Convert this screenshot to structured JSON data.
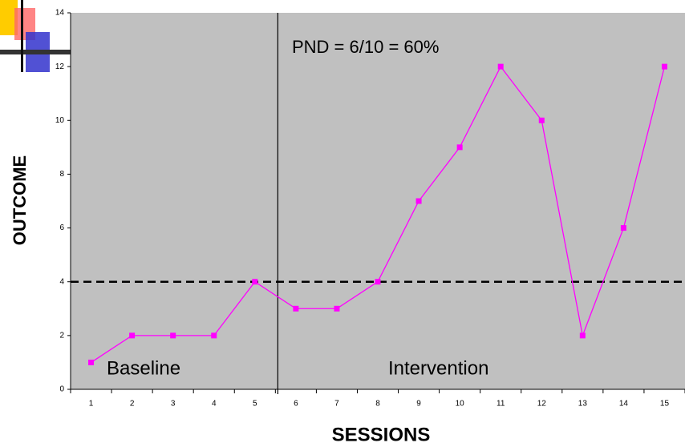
{
  "chart_data": {
    "type": "line",
    "annotations": [
      "PND = 6/10 = 60%",
      "Baseline",
      "Intervention"
    ],
    "x_label": "SESSIONS",
    "y_label": "OUTCOME",
    "categories": [
      "1",
      "2",
      "3",
      "4",
      "5",
      "6",
      "7",
      "8",
      "9",
      "10",
      "11",
      "12",
      "13",
      "14",
      "15"
    ],
    "series": [
      {
        "color": "#ff00ff",
        "values": [
          1,
          2,
          2,
          2,
          4,
          3,
          3,
          4,
          7,
          9,
          12,
          10,
          2,
          6,
          12
        ]
      }
    ],
    "reference_line": 4,
    "ylim": [
      0,
      14
    ],
    "yticks": [
      0,
      2,
      4,
      6,
      8,
      10,
      12,
      14
    ],
    "grid": false
  }
}
